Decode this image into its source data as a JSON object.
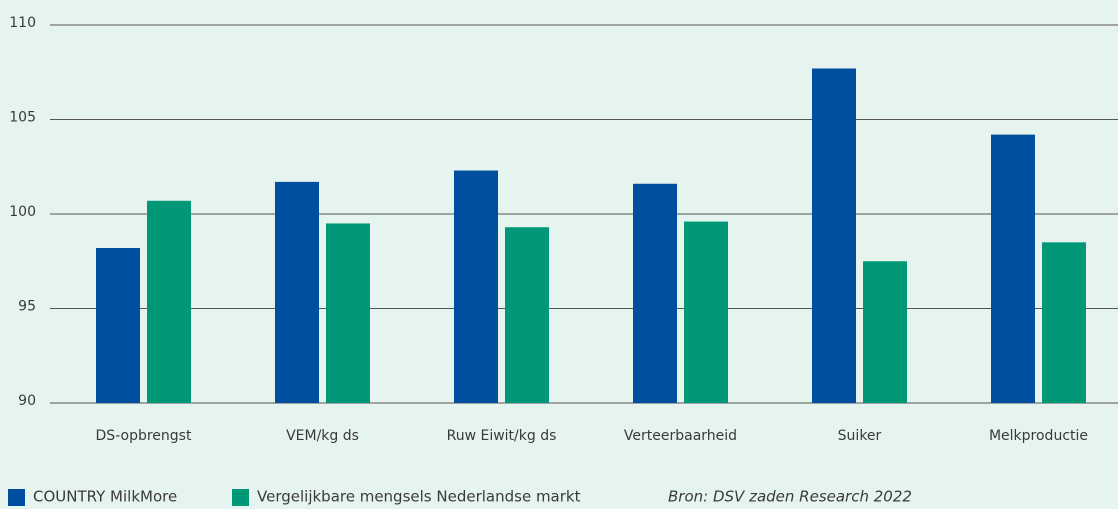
{
  "chart_data": {
    "type": "bar",
    "categories": [
      "DS-opbrengst",
      "VEM/kg ds",
      "Ruw Eiwit/kg ds",
      "Verteerbaarheid",
      "Suiker",
      "Melkproductie"
    ],
    "series": [
      {
        "name": "COUNTRY MilkMore",
        "color": "#004f9f",
        "values": [
          98.2,
          101.7,
          102.3,
          101.6,
          107.7,
          104.2
        ]
      },
      {
        "name": "Vergelijkbare mengsels Nederlandse markt",
        "color": "#009877",
        "values": [
          100.7,
          99.5,
          99.3,
          99.6,
          97.5,
          98.5
        ]
      }
    ],
    "annotation": "Bron: DSV zaden Research 2022",
    "ylim": [
      90,
      110
    ],
    "yticks": [
      90,
      95,
      100,
      105,
      110
    ],
    "grid": true
  }
}
